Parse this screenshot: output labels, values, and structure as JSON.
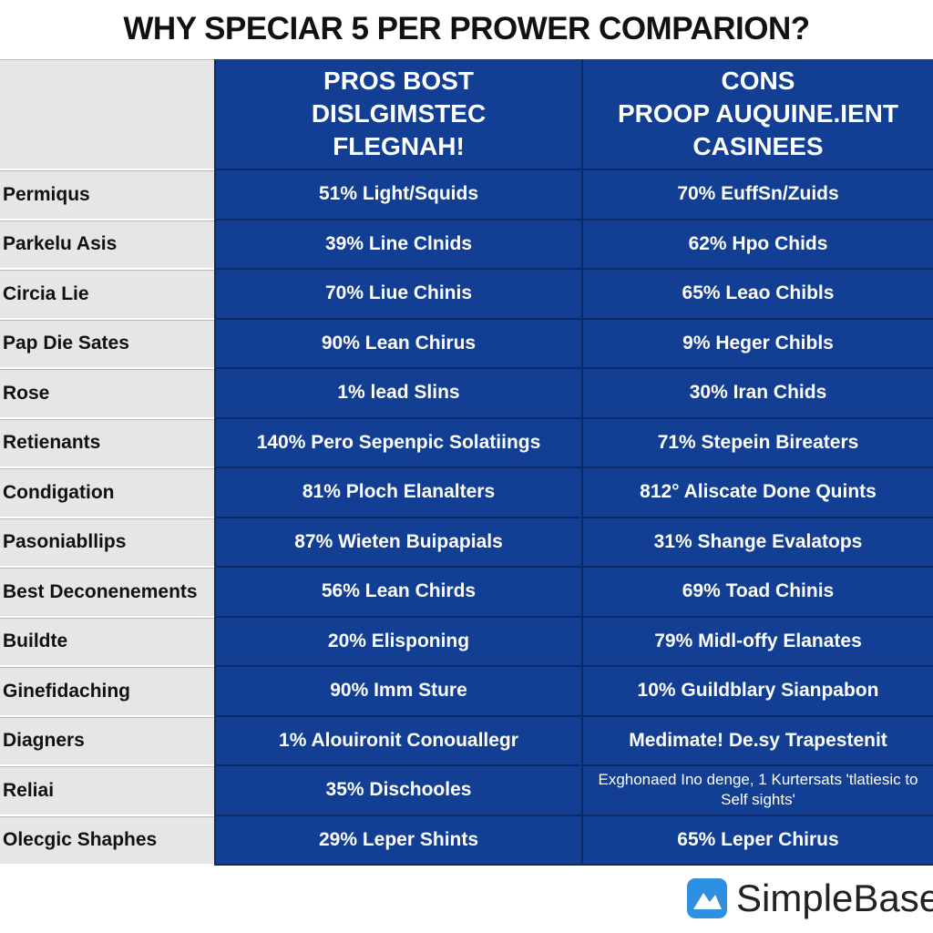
{
  "header": {
    "title": "WHY SPECIAR 5 PER PROWER COMPARION?"
  },
  "table": {
    "header": [
      [],
      [
        "PROS BOST",
        "DISLGIMSTEC",
        "FLEGNAH!"
      ],
      [
        "CONS",
        "PROOP AUQUINE.IENT",
        "CASINEES"
      ]
    ],
    "rows": [
      [
        "Permiqus",
        "51% Light/Squids",
        "70% EuffSn/Zuids"
      ],
      [
        "Parkelu Asis",
        "39% Line Clnids",
        "62% Hpo Chids"
      ],
      [
        "Circia Lie",
        "70% Liue Chinis",
        "65% Leao Chibls"
      ],
      [
        "Pap Die Sates",
        "90% Lean Chirus",
        "9% Heger Chibls"
      ],
      [
        "Rose",
        "1% lead Slins",
        "30% Iran Chids"
      ],
      [
        "Retienants",
        "140% Pero Sepenpic Solatiings",
        "71% Stepein Bireaters"
      ],
      [
        "Condigation",
        "81% Ploch Elanalters",
        "812° Aliscate Done Quints"
      ],
      [
        "Pasoniabllips",
        "87% Wieten Buipapials",
        "31% Shange Evalatops"
      ],
      [
        "Best Deconenements",
        "56% Lean Chirds",
        "69% Toad Chinis"
      ],
      [
        "Buildte",
        "20% Elisponing",
        "79% Midl-offy Elanates"
      ],
      [
        "Ginefidaching",
        "90% Imm Sture",
        "10% Guildblary Sianpabon"
      ],
      [
        "Diagners",
        "1% Alouironit Conouallegr",
        "Medimate! De.sy Trapestenit"
      ],
      [
        "Reliai",
        "35% Dischooles",
        "Exghonaed Ino denge, 1 Kurtersats 'tlatiesic to Self sights'"
      ],
      [
        "Olecgic Shaphes",
        "29% Leper Shints",
        "65% Leper Chirus"
      ]
    ]
  },
  "footer": {
    "brand": "SimpleBase"
  }
}
